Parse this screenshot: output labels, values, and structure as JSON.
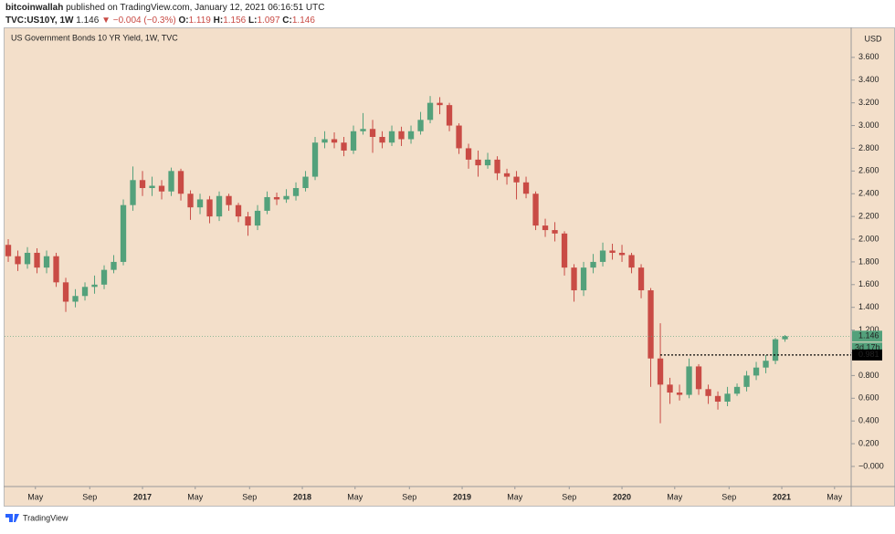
{
  "header": {
    "author": "bitcoinwallah",
    "published": "published on TradingView.com, January 12, 2021 06:16:51 UTC",
    "symbol": "TVC:US10Y, 1W",
    "last": "1.146",
    "change": "▼ −0.004 (−0.3%)",
    "o_label": "O:",
    "o": "1.119",
    "h_label": "H:",
    "h": "1.156",
    "l_label": "L:",
    "l": "1.097",
    "c_label": "C:",
    "c": "1.146"
  },
  "footer": {
    "brand": "TradingView"
  },
  "chart_data": {
    "type": "candlestick",
    "title": "US Government Bonds 10 YR Yield, 1W, TVC",
    "y_unit": "USD",
    "up_color": "#53a17b",
    "down_color": "#c94b45",
    "xlim": [
      2016.137,
      2021.434
    ],
    "xticks": [
      {
        "value": 2016.33,
        "label": "May"
      },
      {
        "value": 2016.67,
        "label": "Sep"
      },
      2017,
      {
        "value": 2017.33,
        "label": "May"
      },
      {
        "value": 2017.67,
        "label": "Sep"
      },
      2018,
      {
        "value": 2018.33,
        "label": "May"
      },
      {
        "value": 2018.67,
        "label": "Sep"
      },
      2019,
      {
        "value": 2019.33,
        "label": "May"
      },
      {
        "value": 2019.67,
        "label": "Sep"
      },
      2020,
      {
        "value": 2020.33,
        "label": "May"
      },
      {
        "value": 2020.67,
        "label": "Sep"
      },
      2021,
      {
        "value": 2021.33,
        "label": "May"
      }
    ],
    "ylim": [
      -0.177,
      3.856
    ],
    "yticks": [
      {
        "value": 0,
        "label": "−0.000"
      },
      {
        "value": 0.2,
        "label": "0.200"
      },
      {
        "value": 0.4,
        "label": "0.400"
      },
      {
        "value": 0.6,
        "label": "0.600"
      },
      {
        "value": 0.8,
        "label": "0.800"
      },
      {
        "value": 1.0,
        "label": "1.000"
      },
      {
        "value": 1.2,
        "label": "1.200"
      },
      {
        "value": 1.4,
        "label": "1.400"
      },
      {
        "value": 1.6,
        "label": "1.600"
      },
      {
        "value": 1.8,
        "label": "1.800"
      },
      {
        "value": 2.0,
        "label": "2.000"
      },
      {
        "value": 2.2,
        "label": "2.200"
      },
      {
        "value": 2.4,
        "label": "2.400"
      },
      {
        "value": 2.6,
        "label": "2.600"
      },
      {
        "value": 2.8,
        "label": "2.800"
      },
      {
        "value": 3.0,
        "label": "3.000"
      },
      {
        "value": 3.2,
        "label": "3.200"
      },
      {
        "value": 3.4,
        "label": "3.400"
      },
      {
        "value": 3.6,
        "label": "3.600"
      }
    ],
    "last_price": {
      "value": 1.146,
      "label": "1.146"
    },
    "countdown": "3d 17h",
    "price_line": {
      "value": 0.981,
      "label": "0.981"
    },
    "x": [
      2016.16,
      2016.22,
      2016.28,
      2016.34,
      2016.4,
      2016.46,
      2016.52,
      2016.58,
      2016.64,
      2016.7,
      2016.76,
      2016.82,
      2016.88,
      2016.94,
      2017.0,
      2017.06,
      2017.12,
      2017.18,
      2017.24,
      2017.3,
      2017.36,
      2017.42,
      2017.48,
      2017.54,
      2017.6,
      2017.66,
      2017.72,
      2017.78,
      2017.84,
      2017.9,
      2017.96,
      2018.02,
      2018.08,
      2018.14,
      2018.2,
      2018.26,
      2018.32,
      2018.38,
      2018.44,
      2018.5,
      2018.56,
      2018.62,
      2018.68,
      2018.74,
      2018.8,
      2018.86,
      2018.92,
      2018.98,
      2019.04,
      2019.1,
      2019.16,
      2019.22,
      2019.28,
      2019.34,
      2019.4,
      2019.46,
      2019.52,
      2019.58,
      2019.64,
      2019.7,
      2019.76,
      2019.82,
      2019.88,
      2019.94,
      2020.0,
      2020.06,
      2020.12,
      2020.18,
      2020.24,
      2020.3,
      2020.36,
      2020.42,
      2020.48,
      2020.54,
      2020.6,
      2020.66,
      2020.72,
      2020.78,
      2020.84,
      2020.9,
      2020.96,
      2021.02
    ],
    "open": [
      1.95,
      1.85,
      1.78,
      1.88,
      1.75,
      1.85,
      1.62,
      1.45,
      1.5,
      1.58,
      1.6,
      1.73,
      1.8,
      2.3,
      2.52,
      2.45,
      2.47,
      2.42,
      2.6,
      2.4,
      2.28,
      2.35,
      2.2,
      2.38,
      2.3,
      2.2,
      2.12,
      2.25,
      2.37,
      2.35,
      2.38,
      2.45,
      2.55,
      2.85,
      2.88,
      2.85,
      2.78,
      2.95,
      2.97,
      2.9,
      2.85,
      2.95,
      2.88,
      2.95,
      3.05,
      3.2,
      3.18,
      3.0,
      2.8,
      2.7,
      2.65,
      2.7,
      2.58,
      2.55,
      2.5,
      2.4,
      2.12,
      2.08,
      2.05,
      1.75,
      1.55,
      1.75,
      1.8,
      1.9,
      1.88,
      1.86,
      1.75,
      1.55,
      0.95,
      0.72,
      0.65,
      0.63,
      0.88,
      0.68,
      0.62,
      0.57,
      0.64,
      0.7,
      0.8,
      0.87,
      0.93,
      1.119
    ],
    "high": [
      2.0,
      1.9,
      1.93,
      1.92,
      1.9,
      1.88,
      1.66,
      1.56,
      1.62,
      1.68,
      1.77,
      1.86,
      2.35,
      2.64,
      2.6,
      2.55,
      2.52,
      2.63,
      2.62,
      2.43,
      2.4,
      2.38,
      2.42,
      2.4,
      2.32,
      2.24,
      2.3,
      2.42,
      2.41,
      2.44,
      2.5,
      2.6,
      2.9,
      2.95,
      2.94,
      2.9,
      3.0,
      3.11,
      3.05,
      2.95,
      3.0,
      2.99,
      3.0,
      3.12,
      3.26,
      3.25,
      3.2,
      3.02,
      2.84,
      2.78,
      2.76,
      2.73,
      2.62,
      2.6,
      2.55,
      2.42,
      2.18,
      2.15,
      2.07,
      1.78,
      1.8,
      1.87,
      1.97,
      1.96,
      1.95,
      1.88,
      1.78,
      1.57,
      1.26,
      0.78,
      0.72,
      0.95,
      0.9,
      0.72,
      0.66,
      0.7,
      0.73,
      0.84,
      0.92,
      0.98,
      1.13,
      1.156
    ],
    "low": [
      1.8,
      1.72,
      1.74,
      1.7,
      1.7,
      1.58,
      1.36,
      1.4,
      1.46,
      1.52,
      1.56,
      1.7,
      1.77,
      2.25,
      2.38,
      2.38,
      2.35,
      2.38,
      2.34,
      2.17,
      2.22,
      2.14,
      2.16,
      2.25,
      2.15,
      2.03,
      2.08,
      2.22,
      2.3,
      2.32,
      2.34,
      2.42,
      2.52,
      2.8,
      2.8,
      2.73,
      2.75,
      2.92,
      2.76,
      2.8,
      2.82,
      2.82,
      2.84,
      2.92,
      3.02,
      3.1,
      2.95,
      2.75,
      2.62,
      2.55,
      2.62,
      2.52,
      2.48,
      2.35,
      2.36,
      2.08,
      2.02,
      1.98,
      1.68,
      1.45,
      1.5,
      1.7,
      1.76,
      1.82,
      1.8,
      1.7,
      1.48,
      0.7,
      0.38,
      0.55,
      0.58,
      0.6,
      0.63,
      0.55,
      0.5,
      0.53,
      0.62,
      0.66,
      0.76,
      0.82,
      0.9,
      1.097
    ],
    "close": [
      1.85,
      1.78,
      1.88,
      1.75,
      1.85,
      1.62,
      1.45,
      1.5,
      1.58,
      1.6,
      1.73,
      1.8,
      2.3,
      2.52,
      2.45,
      2.47,
      2.42,
      2.6,
      2.4,
      2.28,
      2.35,
      2.2,
      2.38,
      2.3,
      2.2,
      2.12,
      2.25,
      2.37,
      2.35,
      2.38,
      2.45,
      2.55,
      2.85,
      2.88,
      2.85,
      2.78,
      2.95,
      2.97,
      2.9,
      2.85,
      2.95,
      2.88,
      2.95,
      3.05,
      3.2,
      3.18,
      3.0,
      2.8,
      2.7,
      2.65,
      2.7,
      2.58,
      2.55,
      2.5,
      2.4,
      2.12,
      2.08,
      2.05,
      1.75,
      1.55,
      1.75,
      1.8,
      1.9,
      1.88,
      1.86,
      1.75,
      1.55,
      0.95,
      0.72,
      0.65,
      0.63,
      0.88,
      0.68,
      0.62,
      0.57,
      0.64,
      0.7,
      0.8,
      0.87,
      0.93,
      1.119,
      1.146
    ]
  }
}
